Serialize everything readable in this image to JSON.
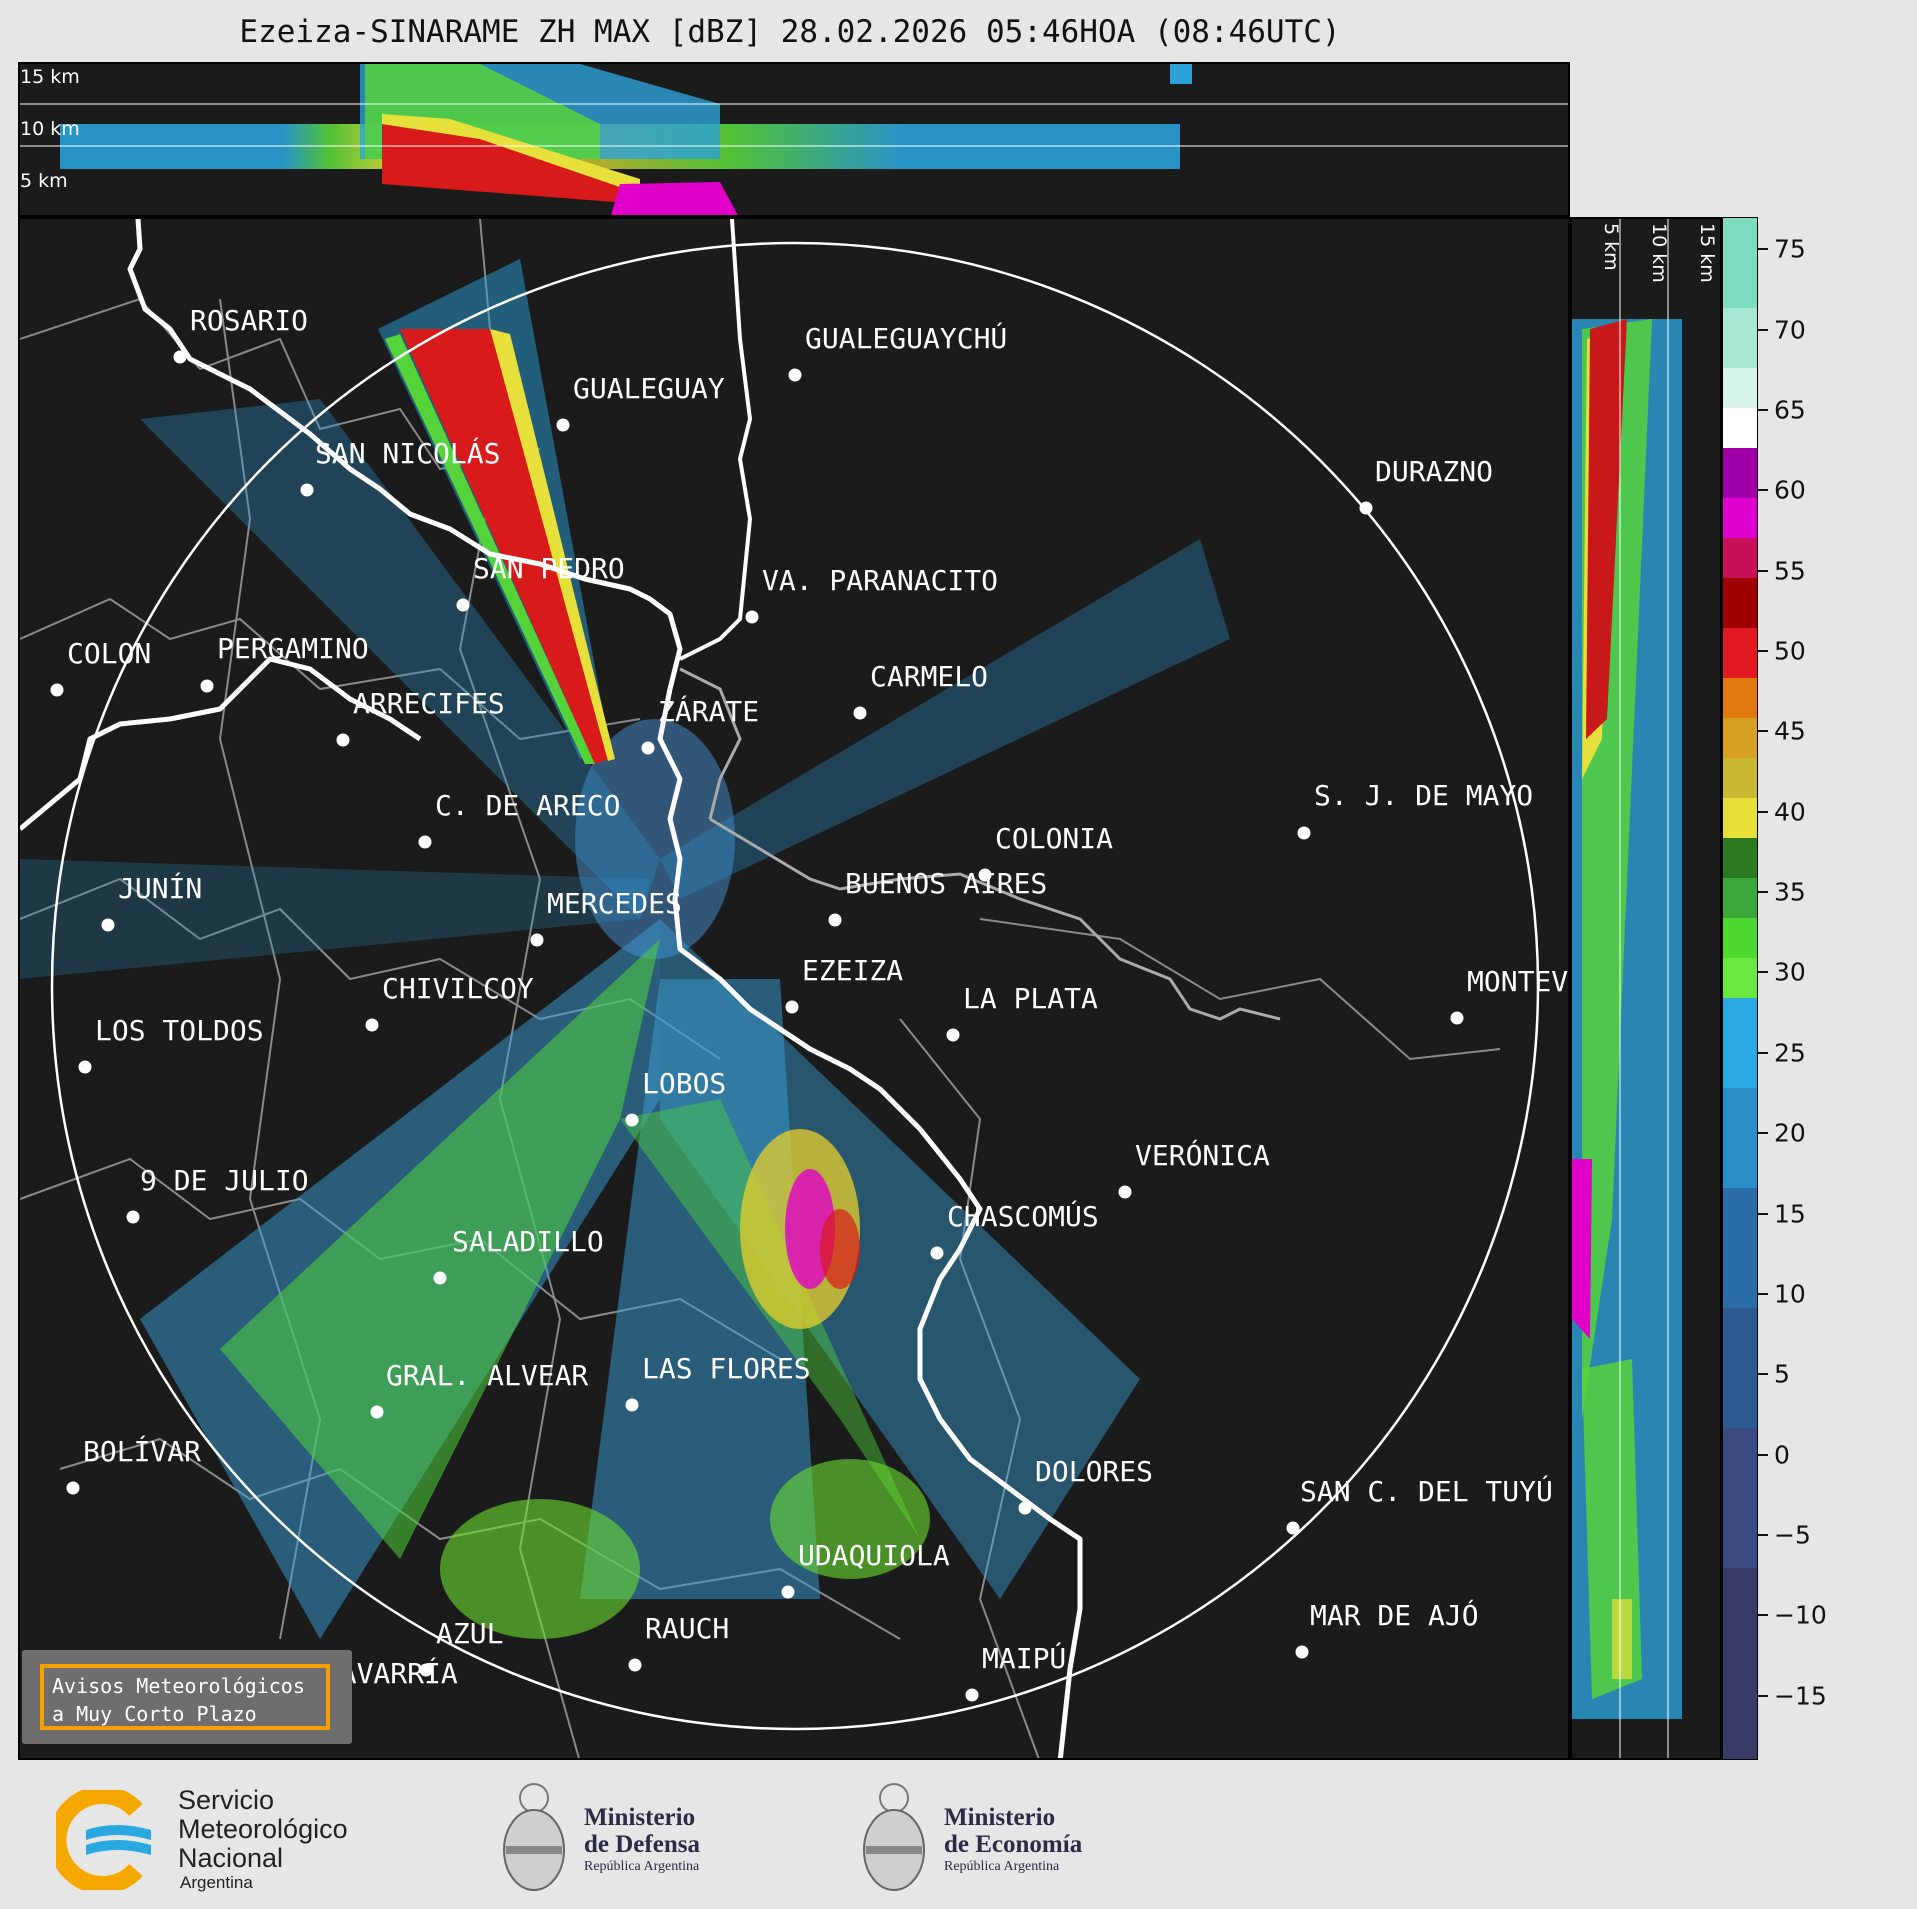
{
  "title": "Ezeiza-SINARAME ZH MAX [dBZ] 28.02.2026 05:46HOA (08:46UTC)",
  "top_altitude_labels": [
    "15 km",
    "10 km",
    "5 km"
  ],
  "side_altitude_labels": [
    "5 km",
    "10 km",
    "15 km"
  ],
  "colorbar": {
    "unit": "dBZ",
    "ticks": [
      "75",
      "70",
      "65",
      "60",
      "55",
      "50",
      "45",
      "40",
      "35",
      "30",
      "25",
      "20",
      "15",
      "10",
      "5",
      "0",
      "−5",
      "−10",
      "−15"
    ]
  },
  "cities": [
    {
      "name": "ROSARIO"
    },
    {
      "name": "GUALEGUAYCHÚ"
    },
    {
      "name": "GUALEGUAY"
    },
    {
      "name": "SAN NICOLÁS"
    },
    {
      "name": "DURAZNO"
    },
    {
      "name": "SAN PEDRO"
    },
    {
      "name": "VA. PARANACITO"
    },
    {
      "name": "COLON"
    },
    {
      "name": "PERGAMINO"
    },
    {
      "name": "CARMELO"
    },
    {
      "name": "ARRECIFES"
    },
    {
      "name": "ZÁRATE"
    },
    {
      "name": "S. J. DE MAYO"
    },
    {
      "name": "C. DE ARECO"
    },
    {
      "name": "COLONIA"
    },
    {
      "name": "BUENOS AIRES"
    },
    {
      "name": "JUNÍN"
    },
    {
      "name": "MERCEDES"
    },
    {
      "name": "EZEIZA"
    },
    {
      "name": "MONTEV"
    },
    {
      "name": "CHIVILCOY"
    },
    {
      "name": "LA PLATA"
    },
    {
      "name": "LOS TOLDOS"
    },
    {
      "name": "LOBOS"
    },
    {
      "name": "VERÓNICA"
    },
    {
      "name": "9 DE JULIO"
    },
    {
      "name": "CHASCOMÚS"
    },
    {
      "name": "SALADILLO"
    },
    {
      "name": "GRAL. ALVEAR"
    },
    {
      "name": "LAS FLORES"
    },
    {
      "name": "BOLÍVAR"
    },
    {
      "name": "DOLORES"
    },
    {
      "name": "SAN C. DEL TUYÚ"
    },
    {
      "name": "UDAQUIOLA"
    },
    {
      "name": "MAR DE AJÓ"
    },
    {
      "name": "AZUL"
    },
    {
      "name": "RAUCH"
    },
    {
      "name": "OLAVARRÍA"
    },
    {
      "name": "MAIPÚ"
    }
  ],
  "alert": {
    "line1": "Avisos Meteorológicos",
    "line2": "a Muy Corto Plazo"
  },
  "logos": {
    "smn": {
      "l1": "Servicio",
      "l2": "Meteorológico",
      "l3": "Nacional",
      "l4": "Argentina"
    },
    "defensa": {
      "l1": "Ministerio",
      "l2": "de Defensa",
      "l3": "República Argentina"
    },
    "economia": {
      "l1": "Ministerio",
      "l2": "de Economía",
      "l3": "República Argentina"
    }
  },
  "colors": {
    "panel_bg": "#1b1b1b",
    "border_white": "#ffffff",
    "province_lines": "#8a8a8a",
    "alert_border": "#f5a000"
  }
}
